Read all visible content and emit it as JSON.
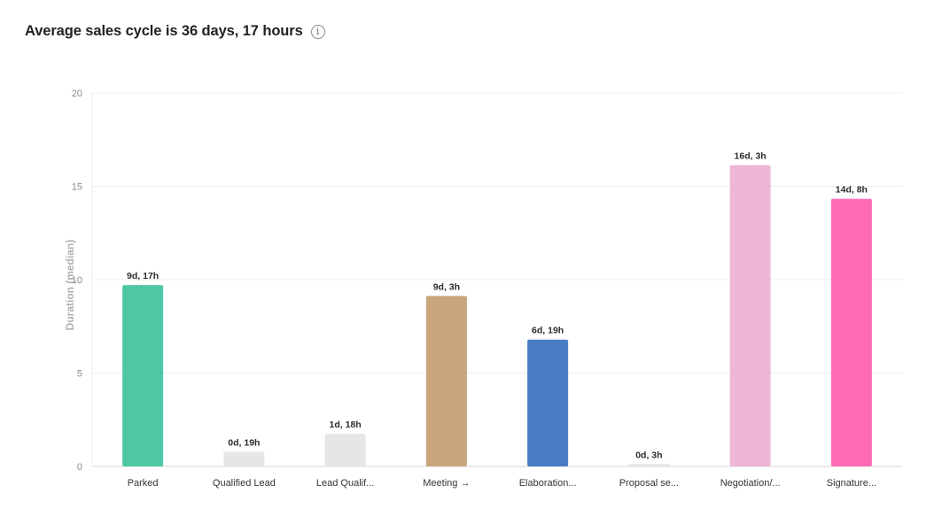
{
  "header": {
    "title": "Average sales cycle is 36 days, 17 hours",
    "info_icon": "info-icon",
    "info_glyph": "i"
  },
  "chart_data": {
    "type": "bar",
    "categories": [
      "Parked",
      "Qualified Lead",
      "Lead Qualif...",
      "Meeting →",
      "Elaboration...",
      "Proposal se...",
      "Negotiation/...",
      "Signature..."
    ],
    "values": [
      9.71,
      0.79,
      1.75,
      9.13,
      6.79,
      0.13,
      16.13,
      14.33
    ],
    "data_labels": [
      "9d, 17h",
      "0d, 19h",
      "1d, 18h",
      "9d, 3h",
      "6d, 19h",
      "0d, 3h",
      "16d, 3h",
      "14d, 8h"
    ],
    "colors": [
      "#4ec7a4",
      "#e6e6e6",
      "#e6e6e6",
      "#c8a57b",
      "#4a7cc4",
      "#e6e6e6",
      "#eeb7d8",
      "#ff6bb3"
    ],
    "ylabel": "Duration (median)",
    "xlabel": "",
    "ylim": [
      0,
      20
    ],
    "yticks": [
      0,
      5,
      10,
      15,
      20
    ],
    "grid": true,
    "legend": "none"
  }
}
